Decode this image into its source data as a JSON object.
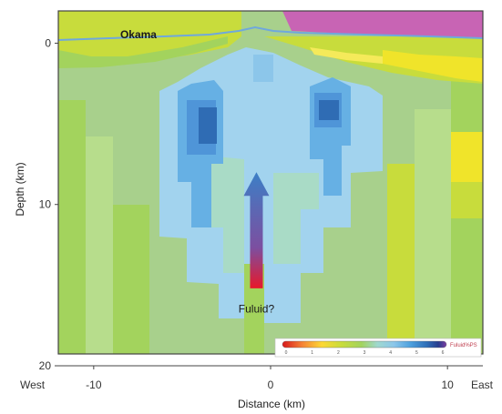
{
  "chart_data": {
    "type": "heatmap",
    "title": "",
    "xlabel": "Distance (km)",
    "ylabel": "Depth (km)",
    "xlim": [
      -12,
      12
    ],
    "ylim": [
      20,
      -2
    ],
    "x_ticks": [
      -10,
      0,
      10
    ],
    "y_ticks": [
      0,
      10,
      20
    ],
    "x_tick_labels": [
      "-10",
      "0",
      "10"
    ],
    "y_tick_labels": [
      "0",
      "10",
      "20"
    ],
    "x_end_labels": {
      "left": "West",
      "right": "East"
    },
    "annotations": [
      {
        "text": "Okama",
        "x": -8.5,
        "y": -0.3
      },
      {
        "text": "Fuluid?",
        "x": -0.8,
        "y": 15.8
      }
    ],
    "arrow": {
      "x": -0.8,
      "y_from": 15.2,
      "y_to": 8.0,
      "color_bottom": "#e8182a",
      "color_top": "#3c7fc6"
    },
    "colorbar": {
      "position": "bottom-right",
      "tick_labels": [
        "0",
        "1",
        "2",
        "3",
        "4",
        "5",
        "6"
      ],
      "label": "Fuluid%PS",
      "colors": [
        "#d7191c",
        "#f58235",
        "#fdd835",
        "#c8dc3c",
        "#a3d35d",
        "#9fd8cf",
        "#8cc6ea",
        "#4ea1de",
        "#2f6fb8",
        "#283e8e",
        "#7b3ea1"
      ]
    },
    "surface_layer": {
      "color": "#c864b4",
      "depth_top": -2,
      "depth_bottom": -0.6,
      "x_from": -4,
      "x_to": 12
    },
    "colors": {
      "background": "#a8d08c",
      "yellow_green": "#c8dc3c",
      "yellow": "#f0e42a",
      "light_green": "#a3d35d",
      "pale_green": "#b7dd8c",
      "mint": "#a9dbc6",
      "light_blue": "#a2d3ee",
      "blue": "#66b0e4",
      "mid_blue": "#4f95d8",
      "dark_blue": "#2f6cb4",
      "magenta": "#c864b4"
    }
  }
}
